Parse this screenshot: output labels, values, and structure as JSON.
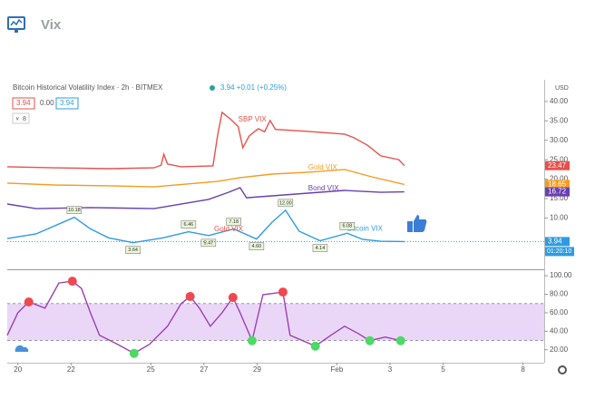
{
  "header": "Vix",
  "chart_data": [
    {
      "type": "line",
      "title": "Bitcoin Historical Volatility Index · 2h · BITMEX",
      "quote": "3.94 +0.01 (+0.25%)",
      "legend_values": [
        "3.94",
        "0.00",
        "3.94"
      ],
      "indicator_count": "8",
      "currency": "USD",
      "countdown": "01:20:10",
      "xlim": [
        -0.4,
        19.8
      ],
      "ylim": [
        -3.2,
        45.1
      ],
      "yticks": [
        {
          "value": 10,
          "label": "10.00"
        },
        {
          "value": 15,
          "label": "15.00"
        },
        {
          "value": 20,
          "label": "20.00"
        },
        {
          "value": 25,
          "label": "25.00"
        },
        {
          "value": 30,
          "label": "30.00"
        },
        {
          "value": 35,
          "label": "35.00"
        },
        {
          "value": 40,
          "label": "40.00"
        }
      ],
      "series": [
        {
          "name": "SBP VIX",
          "color": "#e8504b",
          "x": [
            -0.4,
            1.37,
            3.41,
            5.12,
            5.39,
            5.49,
            5.63,
            6.14,
            7.34,
            7.51,
            7.68,
            8.02,
            8.29,
            8.46,
            8.7,
            9.04,
            9.28,
            9.49,
            9.69,
            10.92,
            12.29,
            12.63,
            13.14,
            13.65,
            14.33,
            14.54
          ],
          "values": [
            23.2,
            22.9,
            22.7,
            22.9,
            23.6,
            26.4,
            23.9,
            23.2,
            23.4,
            31.1,
            37.2,
            35.3,
            33.5,
            28.1,
            31.1,
            33,
            32.2,
            35.1,
            32.8,
            32.3,
            31.6,
            30.7,
            28.8,
            26,
            25,
            23.47
          ]
        },
        {
          "name": "Gold VIX",
          "color": "#f39c1f",
          "x": [
            -0.4,
            1.37,
            3.41,
            5.12,
            7.51,
            8.36,
            9.56,
            10.92,
            12.29,
            13.31,
            14.54
          ],
          "values": [
            19,
            18.5,
            18.3,
            18,
            19.4,
            20.4,
            21.3,
            21.8,
            22.5,
            20.6,
            18.65
          ]
        },
        {
          "name": "Bond VIX",
          "color": "#6a3fb0",
          "x": [
            -0.4,
            0.68,
            2.73,
            5.12,
            7.17,
            7.92,
            8.36,
            8.6,
            9.56,
            10.92,
            12.29,
            13.65,
            14.54
          ],
          "values": [
            13.6,
            12.4,
            12.7,
            12.4,
            14.8,
            16.6,
            17.8,
            15.2,
            15.7,
            16.4,
            17.1,
            16.6,
            16.72
          ]
        },
        {
          "name": "Bitcoin VIX",
          "color": "#2e9be0",
          "x": [
            -0.4,
            0.68,
            2.12,
            2.73,
            3.41,
            4.33,
            5.46,
            6.42,
            7.17,
            8.12,
            8.98,
            9.56,
            10.07,
            10.58,
            11.37,
            12.39,
            12.97,
            13.65,
            14.54
          ],
          "values": [
            4.7,
            5.9,
            10.18,
            7.2,
            4.9,
            3.64,
            4.9,
            6.46,
            5.47,
            7.18,
            4.6,
            8.9,
            12,
            6.6,
            4.14,
            6.08,
            4.5,
            4,
            3.94
          ]
        }
      ],
      "point_labels": {
        "x": [
          2.12,
          4.33,
          6.42,
          7.17,
          8.12,
          8.98,
          10.07,
          11.37,
          12.39
        ],
        "values": [
          10.18,
          3.64,
          6.46,
          5.47,
          7.18,
          4.6,
          12,
          4.14,
          6.08
        ],
        "value_labels": [
          "10.18",
          "3.64",
          "6.46",
          "5.47",
          "7.18",
          "4.60",
          "12.00",
          "4.14",
          "6.08"
        ]
      },
      "annotations": [
        "Gold VIX"
      ],
      "price_tags": [
        {
          "value": 23.47,
          "color": "#e8504b"
        },
        {
          "value": 18.65,
          "color": "#f39c1f"
        },
        {
          "value": 16.72,
          "color": "#6a3fb0"
        },
        {
          "value": 3.94,
          "color": "#2e9be0"
        }
      ]
    },
    {
      "type": "line",
      "xlim": [
        -0.4,
        19.8
      ],
      "ylim": [
        6,
        106
      ],
      "yticks": [
        {
          "value": 20,
          "label": "20.00"
        },
        {
          "value": 40,
          "label": "40.00"
        },
        {
          "value": 60,
          "label": "60.00"
        },
        {
          "value": 80,
          "label": "80.00"
        },
        {
          "value": 100,
          "label": "100.00"
        }
      ],
      "band": [
        30,
        70
      ],
      "band_color": "#ead7f7",
      "xticks": [
        {
          "value": 0,
          "label": "20"
        },
        {
          "value": 2,
          "label": "22"
        },
        {
          "value": 5,
          "label": "25"
        },
        {
          "value": 7,
          "label": "27"
        },
        {
          "value": 9,
          "label": "29"
        },
        {
          "value": 12,
          "label": "Feb"
        },
        {
          "value": 14,
          "label": "3"
        },
        {
          "value": 16,
          "label": "5"
        },
        {
          "value": 19,
          "label": "8"
        }
      ],
      "series": [
        {
          "color": "#9b3fb5",
          "x": [
            -0.4,
            0,
            0.41,
            1.02,
            1.54,
            2.05,
            2.39,
            2.73,
            3.07,
            3.75,
            4.37,
            4.95,
            5.63,
            6.14,
            6.48,
            6.83,
            7.24,
            7.68,
            8.09,
            8.36,
            8.81,
            9.22,
            9.97,
            10.24,
            11.19,
            11.77,
            12.29,
            12.8,
            13.24,
            13.82,
            14.4
          ],
          "values": [
            35.6,
            60,
            71.7,
            64.9,
            92.2,
            94.1,
            86.3,
            60,
            35.6,
            25.9,
            16.1,
            25.9,
            45.4,
            69.8,
            77.6,
            64.9,
            45.4,
            60,
            76.6,
            60,
            29.8,
            79.5,
            82.4,
            35.6,
            23.9,
            35.6,
            45.4,
            37.6,
            29.8,
            33.7,
            29.8
          ]
        }
      ],
      "markers": [
        {
          "x": 0.41,
          "y": 71.7,
          "color": "#f0484f"
        },
        {
          "x": 2.05,
          "y": 94.1,
          "color": "#f0484f"
        },
        {
          "x": 6.48,
          "y": 77.6,
          "color": "#f0484f"
        },
        {
          "x": 8.09,
          "y": 76.6,
          "color": "#f0484f"
        },
        {
          "x": 9.97,
          "y": 82.4,
          "color": "#f0484f"
        },
        {
          "x": 4.37,
          "y": 16.1,
          "color": "#4cd964"
        },
        {
          "x": 8.81,
          "y": 29.8,
          "color": "#4cd964"
        },
        {
          "x": 11.19,
          "y": 23.9,
          "color": "#4cd964"
        },
        {
          "x": 13.24,
          "y": 29.8,
          "color": "#4cd964"
        },
        {
          "x": 14.4,
          "y": 29.8,
          "color": "#4cd964"
        }
      ]
    }
  ]
}
